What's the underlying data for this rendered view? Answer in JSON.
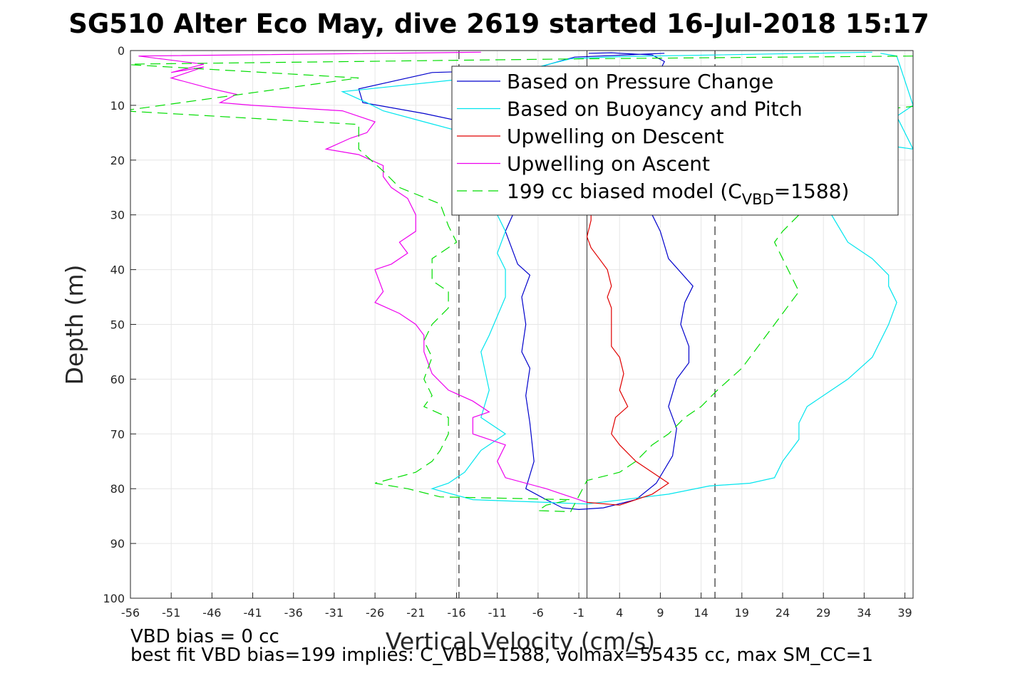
{
  "chart_data": {
    "type": "line",
    "title": "SG510 Alter Eco May, dive 2619 started 16-Jul-2018 15:17",
    "xlabel": "Vertical Velocity (cm/s)",
    "ylabel": "Depth (m)",
    "xlim": [
      -56,
      40
    ],
    "ylim": [
      0,
      100
    ],
    "y_reversed": true,
    "grid": true,
    "legend_position": "top-right",
    "xticks": [
      -56,
      -51,
      -46,
      -41,
      -36,
      -31,
      -26,
      -21,
      -16,
      -11,
      -6,
      -1,
      4,
      9,
      14,
      19,
      24,
      29,
      34,
      39
    ],
    "yticks": [
      0,
      10,
      20,
      30,
      40,
      50,
      60,
      70,
      80,
      90,
      100
    ],
    "reference_lines": [
      {
        "x": -15.7,
        "style": "dashed",
        "color": "#000000"
      },
      {
        "x": 0,
        "style": "solid",
        "color": "#333333"
      },
      {
        "x": 15.7,
        "style": "dashed",
        "color": "#000000"
      }
    ],
    "series": [
      {
        "name": "Based on Pressure Change",
        "color": "#0000cc",
        "dash": "solid",
        "points": [
          [
            9.5,
            0.5
          ],
          [
            -1.5,
            1.2
          ],
          [
            -3,
            1.8
          ],
          [
            -7,
            3.5
          ],
          [
            -19,
            4
          ],
          [
            -28,
            7
          ],
          [
            -27.5,
            9.5
          ],
          [
            -20,
            11.5
          ],
          [
            -12,
            14
          ],
          [
            -9,
            20
          ],
          [
            -8.5,
            28
          ],
          [
            -10,
            33
          ],
          [
            -8.5,
            39
          ],
          [
            -7,
            41
          ],
          [
            -8,
            45
          ],
          [
            -7.5,
            50
          ],
          [
            -8,
            55
          ],
          [
            -7,
            58
          ],
          [
            -7.5,
            63
          ],
          [
            -7,
            68
          ],
          [
            -6.5,
            75
          ],
          [
            -7.5,
            80
          ],
          [
            -5,
            82
          ],
          [
            -3,
            83.5
          ],
          [
            -1,
            83.8
          ],
          [
            2,
            83.5
          ],
          [
            6,
            82
          ],
          [
            8.5,
            79
          ],
          [
            10.5,
            74
          ],
          [
            11,
            69
          ],
          [
            10,
            65
          ],
          [
            11,
            60
          ],
          [
            12.5,
            57
          ],
          [
            12.5,
            54
          ],
          [
            11.5,
            50
          ],
          [
            12,
            46
          ],
          [
            13,
            43
          ],
          [
            10,
            38
          ],
          [
            9,
            33
          ],
          [
            8,
            30
          ],
          [
            8,
            20
          ],
          [
            7.5,
            12
          ],
          [
            8.5,
            5
          ],
          [
            9.5,
            2
          ],
          [
            8,
            0.8
          ],
          [
            3,
            0.4
          ],
          [
            0.2,
            0.5
          ]
        ]
      },
      {
        "name": "Based on Buoyancy and Pitch",
        "color": "#00e5ee",
        "dash": "solid",
        "points": [
          [
            35,
            0.3
          ],
          [
            4,
            1.1
          ],
          [
            -2,
            1.5
          ],
          [
            -6,
            3
          ],
          [
            -14,
            5
          ],
          [
            -30,
            7.5
          ],
          [
            -27,
            9.5
          ],
          [
            -25,
            11
          ],
          [
            -20,
            13
          ],
          [
            -15,
            15
          ],
          [
            -12,
            22
          ],
          [
            -11,
            30
          ],
          [
            -10,
            33
          ],
          [
            -11,
            37
          ],
          [
            -10,
            40
          ],
          [
            -10,
            45
          ],
          [
            -12,
            52
          ],
          [
            -13,
            55
          ],
          [
            -12,
            62
          ],
          [
            -13,
            67
          ],
          [
            -10,
            70
          ],
          [
            -13,
            73
          ],
          [
            -15,
            77
          ],
          [
            -17,
            79
          ],
          [
            -19,
            80
          ],
          [
            -14,
            82
          ],
          [
            -5,
            82.5
          ],
          [
            0,
            82.8
          ],
          [
            10,
            81
          ],
          [
            15,
            79.5
          ],
          [
            20,
            79
          ],
          [
            23,
            78
          ],
          [
            24,
            75
          ],
          [
            26,
            71
          ],
          [
            26,
            68
          ],
          [
            27,
            65
          ],
          [
            30,
            62
          ],
          [
            32,
            60
          ],
          [
            35,
            56
          ],
          [
            37,
            50
          ],
          [
            38,
            46
          ],
          [
            37,
            43
          ],
          [
            37,
            41
          ],
          [
            35,
            38
          ],
          [
            32,
            35
          ],
          [
            30,
            30
          ],
          [
            28,
            20
          ],
          [
            26,
            15
          ],
          [
            40,
            18
          ],
          [
            38,
            12
          ],
          [
            40,
            10
          ],
          [
            38,
            1
          ],
          [
            36,
            0.5
          ]
        ]
      },
      {
        "name": "Upwelling on Descent",
        "color": "#e00000",
        "dash": "solid",
        "points": [
          [
            0,
            82.5
          ],
          [
            4,
            83
          ],
          [
            8,
            81
          ],
          [
            9,
            80
          ],
          [
            10,
            79
          ],
          [
            8,
            77
          ],
          [
            6,
            75
          ],
          [
            4,
            72
          ],
          [
            3,
            70
          ],
          [
            3.5,
            67
          ],
          [
            5,
            65
          ],
          [
            4,
            62
          ],
          [
            4.5,
            59
          ],
          [
            4,
            56
          ],
          [
            3,
            54
          ],
          [
            3,
            50
          ],
          [
            3,
            47
          ],
          [
            2.5,
            45
          ],
          [
            3,
            43
          ],
          [
            2.5,
            40
          ],
          [
            1.5,
            38
          ],
          [
            0.5,
            36
          ],
          [
            0,
            34
          ],
          [
            0.5,
            31
          ],
          [
            0.5,
            30
          ]
        ]
      },
      {
        "name": "Upwelling on Ascent",
        "color": "#ee00ee",
        "dash": "solid",
        "points": [
          [
            -13,
            0.3
          ],
          [
            -55,
            1
          ],
          [
            -47,
            2.5
          ],
          [
            -51,
            4
          ],
          [
            -47,
            3
          ],
          [
            -51,
            5
          ],
          [
            -46,
            7
          ],
          [
            -43,
            8
          ],
          [
            -45,
            9.5
          ],
          [
            -41,
            10
          ],
          [
            -30,
            11
          ],
          [
            -26,
            13
          ],
          [
            -27,
            15
          ],
          [
            -29,
            16
          ],
          [
            -32,
            18
          ],
          [
            -28,
            19
          ],
          [
            -25,
            21
          ],
          [
            -25,
            23
          ],
          [
            -24,
            25
          ],
          [
            -22,
            27
          ],
          [
            -21,
            30
          ],
          [
            -21,
            33
          ],
          [
            -23,
            35
          ],
          [
            -22,
            37
          ],
          [
            -24,
            39
          ],
          [
            -26,
            40
          ],
          [
            -25,
            44
          ],
          [
            -26,
            46
          ],
          [
            -23,
            48
          ],
          [
            -21,
            50
          ],
          [
            -20,
            52
          ],
          [
            -20,
            55
          ],
          [
            -19,
            59
          ],
          [
            -17,
            62
          ],
          [
            -14,
            64
          ],
          [
            -12,
            66
          ],
          [
            -14,
            67
          ],
          [
            -14,
            70
          ],
          [
            -10,
            72
          ],
          [
            -11,
            75
          ],
          [
            -10,
            78
          ],
          [
            -5,
            80
          ],
          [
            -3,
            81
          ],
          [
            -1,
            82
          ],
          [
            0,
            82.5
          ]
        ]
      },
      {
        "name": "199 cc biased model (C_VBD=1588)",
        "color": "#00dd00",
        "dash": "dashed",
        "points": [
          [
            40,
            1
          ],
          [
            0,
            1.5
          ],
          [
            -57,
            2.5
          ],
          [
            -28,
            5
          ],
          [
            -57,
            11
          ],
          [
            -28,
            13.5
          ],
          [
            -28,
            18
          ],
          [
            -25,
            22
          ],
          [
            -23,
            25
          ],
          [
            -18,
            28
          ],
          [
            -17,
            32
          ],
          [
            -16,
            35
          ],
          [
            -19,
            38
          ],
          [
            -19,
            42
          ],
          [
            -17,
            44
          ],
          [
            -17,
            47
          ],
          [
            -19,
            50
          ],
          [
            -20,
            53
          ],
          [
            -19,
            56
          ],
          [
            -20,
            60
          ],
          [
            -19,
            63
          ],
          [
            -20,
            65
          ],
          [
            -17,
            67
          ],
          [
            -17,
            70
          ],
          [
            -18,
            73
          ],
          [
            -19,
            75
          ],
          [
            -21,
            77
          ],
          [
            -26,
            79
          ],
          [
            -22,
            80
          ],
          [
            -18,
            81.5
          ],
          [
            -2,
            82
          ],
          [
            -5,
            83
          ],
          [
            -6,
            84
          ],
          [
            -2,
            84.2
          ],
          [
            0,
            78.5
          ],
          [
            4,
            77
          ],
          [
            6,
            75
          ],
          [
            8,
            72
          ],
          [
            10,
            70
          ],
          [
            12,
            67
          ],
          [
            14,
            65
          ],
          [
            16,
            62
          ],
          [
            19,
            58
          ],
          [
            21,
            54
          ],
          [
            23,
            50
          ],
          [
            24,
            48
          ],
          [
            25,
            46
          ],
          [
            26,
            44
          ],
          [
            25,
            41
          ],
          [
            24,
            38
          ],
          [
            23,
            35
          ],
          [
            24,
            33
          ],
          [
            26,
            30
          ],
          [
            24,
            25
          ],
          [
            23,
            22
          ],
          [
            22,
            18
          ],
          [
            23,
            13
          ],
          [
            25,
            10
          ],
          [
            38,
            10.5
          ],
          [
            40,
            10.2
          ]
        ]
      }
    ],
    "legend_model_prefix": "199 cc biased model (C",
    "legend_model_sub": "VBD",
    "legend_model_suffix": "=1588)"
  },
  "footer": {
    "line1": "VBD bias = 0 cc",
    "line2": "best fit VBD bias=199 implies: C_VBD=1588, volmax=55435 cc, max SM_CC=1"
  }
}
